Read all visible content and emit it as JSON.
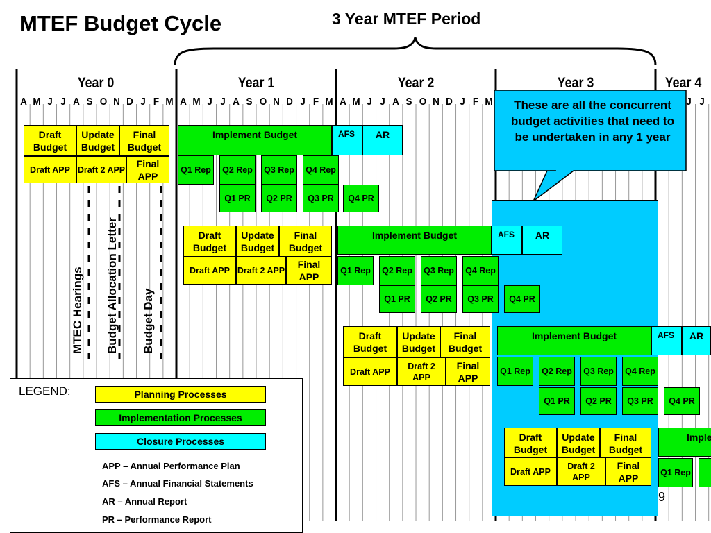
{
  "title": "MTEF Budget Cycle",
  "period_label": "3 Year MTEF Period",
  "years": [
    "Year 0",
    "Year 1",
    "Year 2",
    "Year 3",
    "Year 4"
  ],
  "months": [
    "A",
    "M",
    "J",
    "J",
    "A",
    "S",
    "O",
    "N",
    "D",
    "J",
    "F",
    "M"
  ],
  "colors": {
    "planning": "#ffff00",
    "implementation": "#00ee00",
    "closure": "#00ffff",
    "callout": "#00ccff"
  },
  "labels": {
    "draft_budget": "Draft Budget",
    "update_budget": "Update Budget",
    "final_budget": "Final Budget",
    "draft_app": "Draft APP",
    "draft2_app": "Draft 2 APP",
    "final_app": "Final APP",
    "implement_budget": "Implement Budget",
    "implement_partial": "Imple",
    "afs": "AFS",
    "ar": "AR",
    "q1_rep": "Q1 Rep",
    "q2_rep": "Q2 Rep",
    "q3_rep": "Q3 Rep",
    "q4_rep": "Q4 Rep",
    "q1_pr": "Q1 PR",
    "q2_pr": "Q2 PR",
    "q3_pr": "Q3 PR",
    "q4_pr": "Q4 PR",
    "q1_rep_partial": "Q1 Rep"
  },
  "milestones": [
    "MTEC Hearings",
    "Budget Allocation Letter",
    "Budget Day"
  ],
  "callout": "These are all the concurrent budget activities that need to be undertaken in any 1 year",
  "legend": {
    "title": "LEGEND:",
    "planning": "Planning Processes",
    "implementation": "Implementation Processes",
    "closure": "Closure Processes",
    "defs": [
      "APP – Annual Performance Plan",
      "AFS – Annual Financial Statements",
      "AR – Annual Report",
      "PR – Performance Report"
    ]
  },
  "page_number": "9"
}
